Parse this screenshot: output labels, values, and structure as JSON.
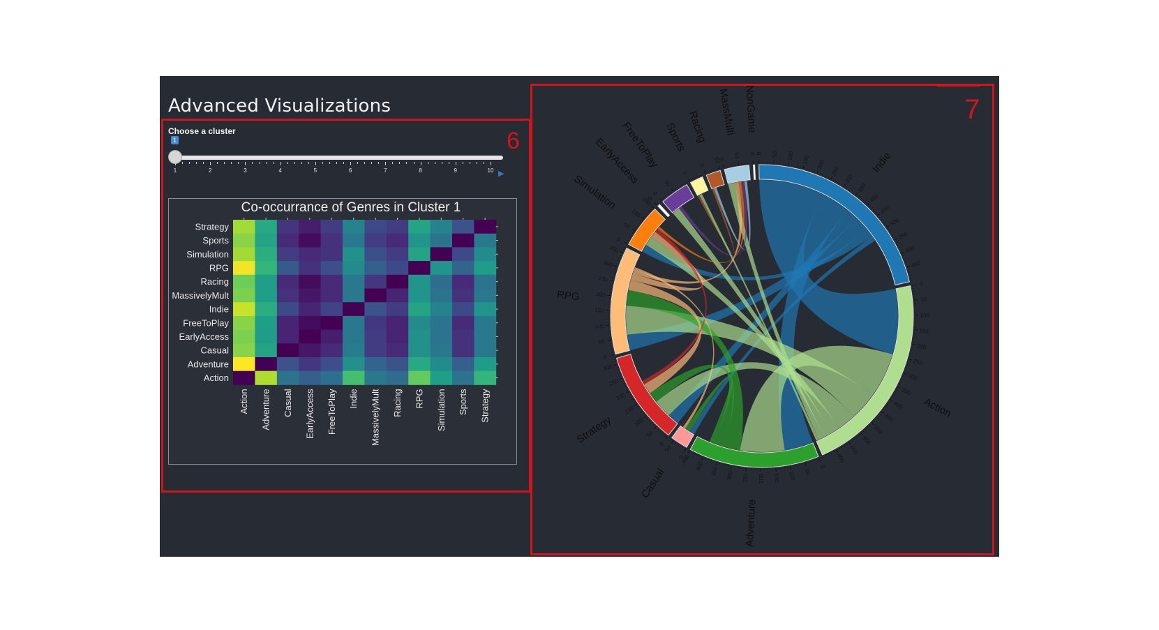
{
  "page": {
    "title": "Advanced Visualizations"
  },
  "annotations": {
    "box6": "6",
    "box7": "7"
  },
  "slider": {
    "label": "Choose a cluster",
    "value": "1",
    "min": 1,
    "max": 10,
    "tick_labels": [
      "1",
      "2",
      "3",
      "4",
      "5",
      "6",
      "7",
      "8",
      "9",
      "10"
    ]
  },
  "colors": {
    "background": "#272b34",
    "annotation": "#d0151f",
    "slider_badge": "#428bca"
  },
  "chart_data": [
    {
      "type": "heatmap",
      "title": "Co-occurrance of Genres in Cluster 1",
      "x_categories": [
        "Action",
        "Adventure",
        "Casual",
        "EarlyAccess",
        "FreeToPlay",
        "Indie",
        "MassivelyMult",
        "Racing",
        "RPG",
        "Simulation",
        "Sports",
        "Strategy"
      ],
      "y_categories": [
        "Strategy",
        "Sports",
        "Simulation",
        "RPG",
        "Racing",
        "MassivelyMult",
        "Indie",
        "FreeToPlay",
        "EarlyAccess",
        "Casual",
        "Adventure",
        "Action"
      ],
      "colorscale": "viridis",
      "values": [
        [
          0.86,
          0.6,
          0.15,
          0.08,
          0.18,
          0.45,
          0.22,
          0.18,
          0.58,
          0.45,
          0.25,
          0.0
        ],
        [
          0.82,
          0.58,
          0.12,
          0.03,
          0.14,
          0.4,
          0.18,
          0.12,
          0.52,
          0.38,
          0.0,
          0.4
        ],
        [
          0.86,
          0.62,
          0.18,
          0.12,
          0.14,
          0.5,
          0.24,
          0.18,
          0.58,
          0.0,
          0.22,
          0.48
        ],
        [
          0.98,
          0.66,
          0.28,
          0.14,
          0.24,
          0.48,
          0.3,
          0.22,
          0.0,
          0.52,
          0.32,
          0.55
        ],
        [
          0.78,
          0.56,
          0.12,
          0.03,
          0.12,
          0.4,
          0.16,
          0.0,
          0.52,
          0.35,
          0.12,
          0.38
        ],
        [
          0.8,
          0.56,
          0.14,
          0.06,
          0.12,
          0.4,
          0.0,
          0.1,
          0.52,
          0.38,
          0.14,
          0.4
        ],
        [
          0.92,
          0.62,
          0.22,
          0.1,
          0.2,
          0.0,
          0.25,
          0.18,
          0.58,
          0.45,
          0.22,
          0.52
        ],
        [
          0.82,
          0.56,
          0.1,
          0.03,
          0.0,
          0.4,
          0.16,
          0.1,
          0.48,
          0.38,
          0.12,
          0.4
        ],
        [
          0.8,
          0.55,
          0.1,
          0.0,
          0.08,
          0.4,
          0.18,
          0.1,
          0.5,
          0.38,
          0.14,
          0.4
        ],
        [
          0.82,
          0.58,
          0.0,
          0.06,
          0.12,
          0.42,
          0.18,
          0.12,
          0.5,
          0.4,
          0.14,
          0.4
        ],
        [
          1.0,
          0.0,
          0.25,
          0.16,
          0.24,
          0.5,
          0.32,
          0.26,
          0.6,
          0.48,
          0.3,
          0.55
        ],
        [
          0.0,
          0.88,
          0.38,
          0.3,
          0.36,
          0.7,
          0.4,
          0.35,
          0.76,
          0.56,
          0.38,
          0.66
        ]
      ]
    },
    {
      "type": "chord",
      "groups": [
        {
          "name": "Indie",
          "color": "#1f77b4",
          "ticks": [
            "0",
            "50",
            "100",
            "150",
            "200",
            "250",
            "300",
            "350",
            "400",
            "450",
            "500",
            "550",
            "600",
            "650"
          ]
        },
        {
          "name": "Action",
          "color": "#aede8e",
          "ticks": [
            "0",
            "50",
            "100",
            "150",
            "200",
            "250",
            "300",
            "350",
            "400",
            "450",
            "500",
            "550",
            "600",
            "650"
          ]
        },
        {
          "name": "Adventure",
          "color": "#2ca02c",
          "ticks": [
            "0",
            "50",
            "100",
            "150",
            "200",
            "250",
            "300",
            "350",
            "400",
            "450"
          ]
        },
        {
          "name": "Casual",
          "color": "#ff9896",
          "ticks": [
            "0",
            "50"
          ]
        },
        {
          "name": "Strategy",
          "color": "#d62728",
          "ticks": [
            "0",
            "50",
            "100",
            "150",
            "200",
            "250",
            "300"
          ]
        },
        {
          "name": "RPG",
          "color": "#ffbb78",
          "ticks": [
            "0",
            "50",
            "100",
            "150",
            "200",
            "250",
            "300",
            "350"
          ]
        },
        {
          "name": "Simulation",
          "color": "#ff7f0e",
          "ticks": [
            "0",
            "50",
            "100",
            "150"
          ]
        },
        {
          "name": "EarlyAccess",
          "color": "#ffffff",
          "ticks": [
            "0"
          ]
        },
        {
          "name": "FreeToPlay",
          "color": "#6a3d9a",
          "ticks": [
            "0",
            "50"
          ]
        },
        {
          "name": "Sports",
          "color": "#fff59a",
          "ticks": [
            "0",
            "50"
          ]
        },
        {
          "name": "Racing",
          "color": "#b15a28",
          "ticks": [
            "0",
            "50"
          ]
        },
        {
          "name": "MassMulti",
          "color": "#a6cee3",
          "ticks": [
            "0",
            "50"
          ]
        },
        {
          "name": "NonGame",
          "color": "#ffffff",
          "ticks": [
            "0"
          ]
        }
      ],
      "sizes": [
        700,
        700,
        450,
        60,
        320,
        370,
        150,
        8,
        100,
        45,
        50,
        85,
        5
      ],
      "links": [
        {
          "a": 0,
          "b": 1,
          "value": 250
        },
        {
          "a": 0,
          "b": 2,
          "value": 110
        },
        {
          "a": 0,
          "b": 4,
          "value": 45
        },
        {
          "a": 0,
          "b": 5,
          "value": 60
        },
        {
          "a": 0,
          "b": 6,
          "value": 30
        },
        {
          "a": 0,
          "b": 3,
          "value": 20
        },
        {
          "a": 1,
          "b": 2,
          "value": 170
        },
        {
          "a": 1,
          "b": 5,
          "value": 110
        },
        {
          "a": 1,
          "b": 4,
          "value": 70
        },
        {
          "a": 1,
          "b": 6,
          "value": 35
        },
        {
          "a": 1,
          "b": 8,
          "value": 30
        },
        {
          "a": 1,
          "b": 11,
          "value": 25
        },
        {
          "a": 2,
          "b": 5,
          "value": 60
        },
        {
          "a": 2,
          "b": 4,
          "value": 40
        },
        {
          "a": 2,
          "b": 3,
          "value": 20
        },
        {
          "a": 5,
          "b": 4,
          "value": 40
        },
        {
          "a": 5,
          "b": 6,
          "value": 25
        },
        {
          "a": 5,
          "b": 11,
          "value": 15
        },
        {
          "a": 6,
          "b": 4,
          "value": 15
        },
        {
          "a": 6,
          "b": 11,
          "value": 10
        },
        {
          "a": 8,
          "b": 11,
          "value": 12
        },
        {
          "a": 9,
          "b": 10,
          "value": 8
        },
        {
          "a": 11,
          "b": 10,
          "value": 10
        },
        {
          "a": 3,
          "b": 5,
          "value": 10
        },
        {
          "a": 9,
          "b": 1,
          "value": 10
        }
      ]
    }
  ]
}
